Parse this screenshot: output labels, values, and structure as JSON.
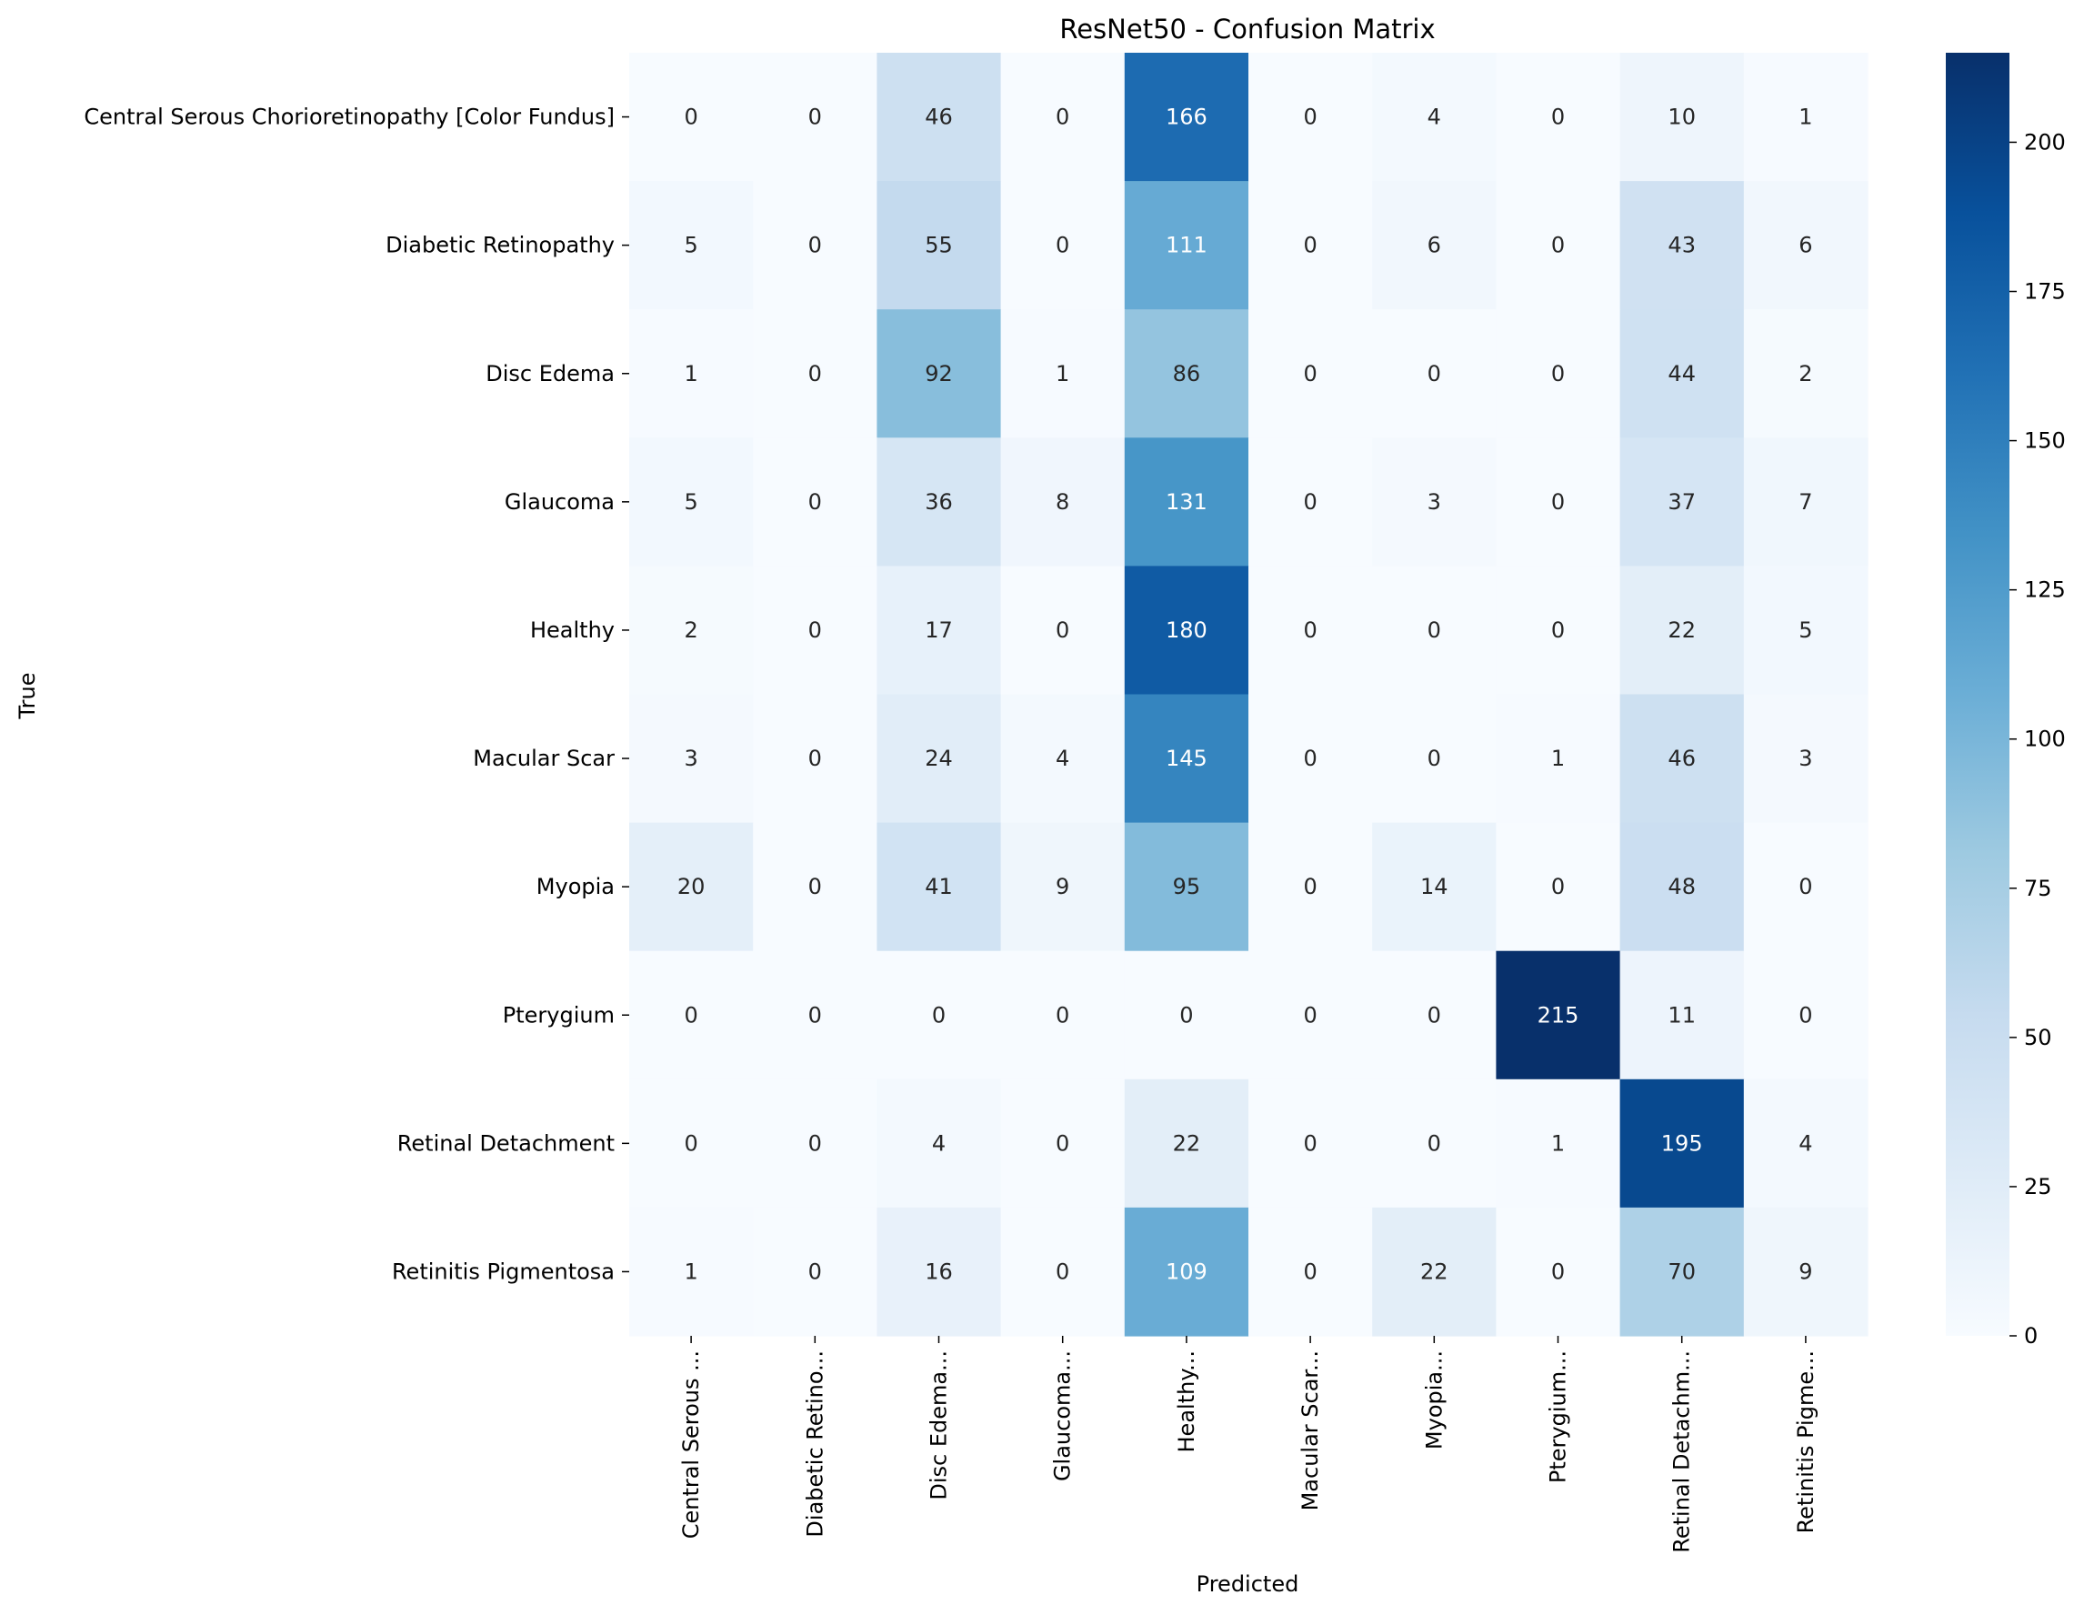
{
  "chart_data": {
    "type": "heatmap",
    "title": "ResNet50 - Confusion Matrix",
    "xlabel": "Predicted",
    "ylabel": "True",
    "row_labels": [
      "Central Serous Chorioretinopathy [Color Fundus]",
      "Diabetic Retinopathy",
      "Disc Edema",
      "Glaucoma",
      "Healthy",
      "Macular Scar",
      "Myopia",
      "Pterygium",
      "Retinal Detachment",
      "Retinitis Pigmentosa"
    ],
    "col_labels": [
      "Central Serous ...",
      "Diabetic Retino...",
      "Disc Edema...",
      "Glaucoma...",
      "Healthy...",
      "Macular Scar...",
      "Myopia...",
      "Pterygium...",
      "Retinal Detachm...",
      "Retinitis Pigme..."
    ],
    "values": [
      [
        0,
        0,
        46,
        0,
        166,
        0,
        4,
        0,
        10,
        1
      ],
      [
        5,
        0,
        55,
        0,
        111,
        0,
        6,
        0,
        43,
        6
      ],
      [
        1,
        0,
        92,
        1,
        86,
        0,
        0,
        0,
        44,
        2
      ],
      [
        5,
        0,
        36,
        8,
        131,
        0,
        3,
        0,
        37,
        7
      ],
      [
        2,
        0,
        17,
        0,
        180,
        0,
        0,
        0,
        22,
        5
      ],
      [
        3,
        0,
        24,
        4,
        145,
        0,
        0,
        1,
        46,
        3
      ],
      [
        20,
        0,
        41,
        9,
        95,
        0,
        14,
        0,
        48,
        0
      ],
      [
        0,
        0,
        0,
        0,
        0,
        0,
        0,
        215,
        11,
        0
      ],
      [
        0,
        0,
        4,
        0,
        22,
        0,
        0,
        1,
        195,
        4
      ],
      [
        1,
        0,
        16,
        0,
        109,
        0,
        22,
        0,
        70,
        9
      ]
    ],
    "colormap": "Blues",
    "vmin": 0,
    "vmax": 215,
    "colorbar_ticks": [
      0,
      25,
      50,
      75,
      100,
      125,
      150,
      175,
      200
    ]
  }
}
